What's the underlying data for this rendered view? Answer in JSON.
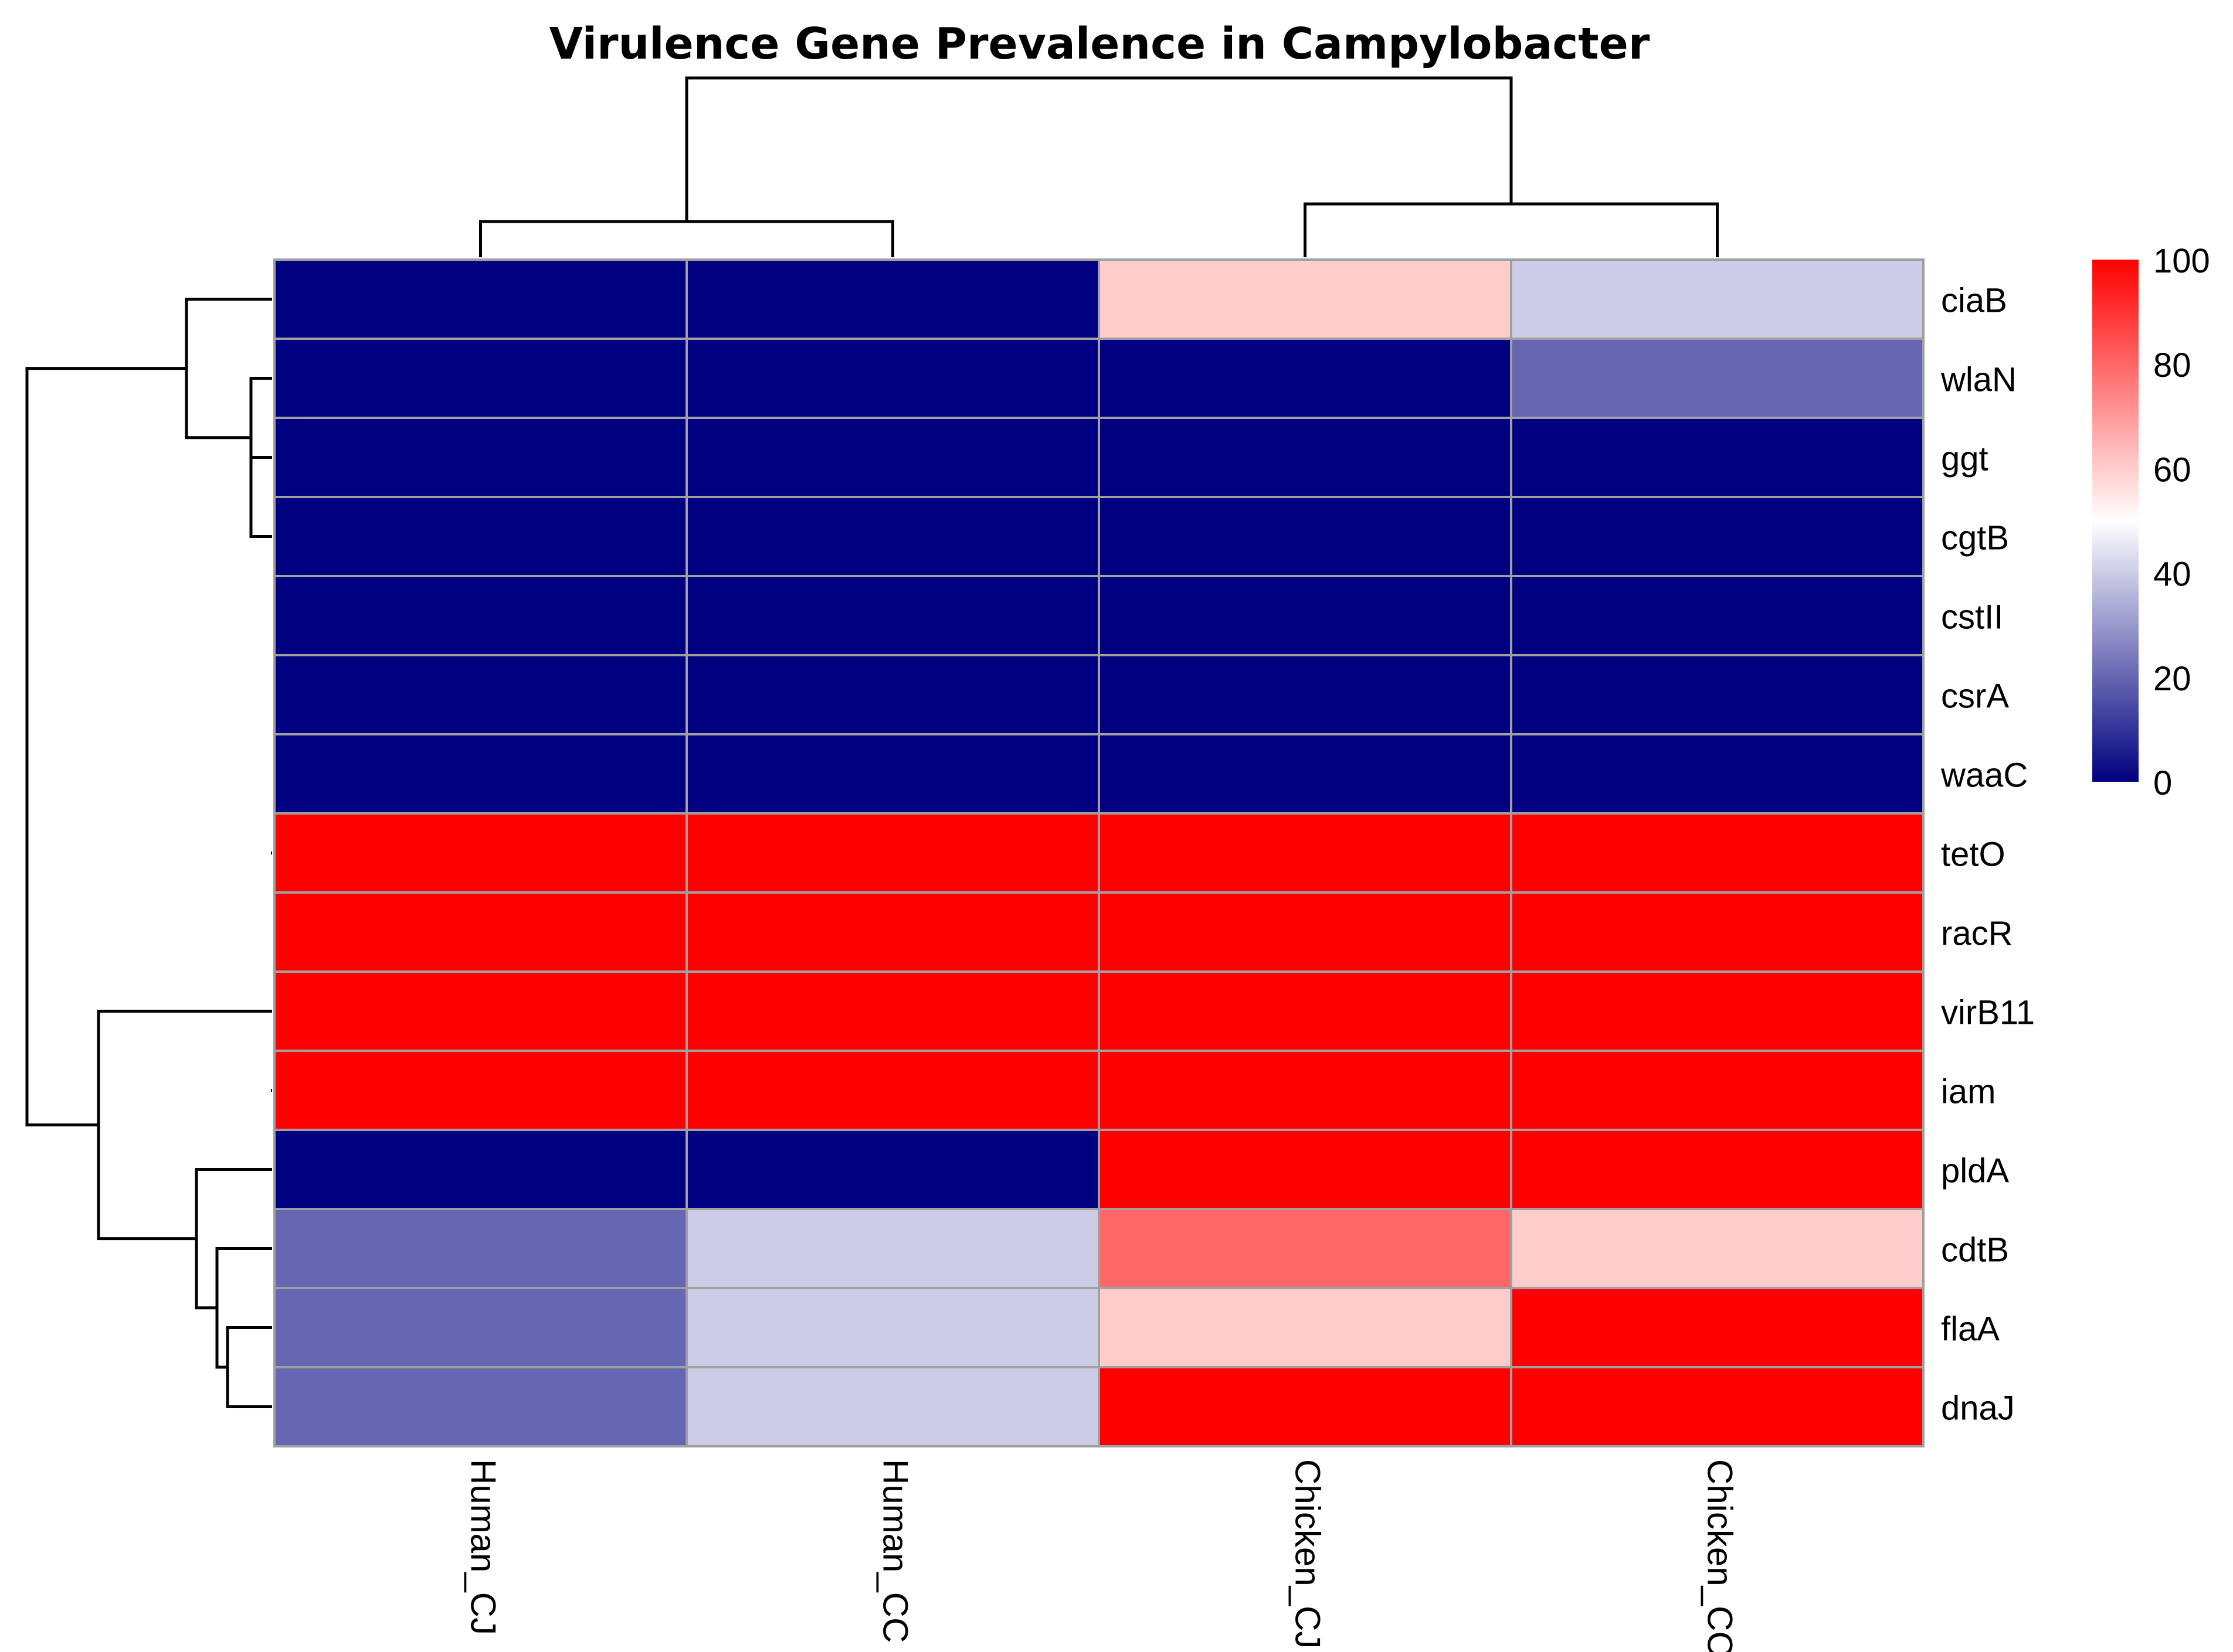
{
  "chart_data": {
    "type": "heatmap",
    "title": "Virulence Gene Prevalence in Campylobacter",
    "columns": [
      "Human_CJ",
      "Human_CC",
      "Chicken_CJ",
      "Chicken_CC"
    ],
    "rows": [
      "ciaB",
      "wlaN",
      "ggt",
      "cgtB",
      "cstII",
      "csrA",
      "waaC",
      "tetO",
      "racR",
      "virB11",
      "iam",
      "pldA",
      "cdtB",
      "flaA",
      "dnaJ"
    ],
    "values": [
      [
        0,
        0,
        60,
        40
      ],
      [
        0,
        0,
        0,
        20
      ],
      [
        0,
        0,
        0,
        0
      ],
      [
        0,
        0,
        0,
        0
      ],
      [
        0,
        0,
        0,
        0
      ],
      [
        0,
        0,
        0,
        0
      ],
      [
        0,
        0,
        0,
        0
      ],
      [
        100,
        100,
        100,
        100
      ],
      [
        100,
        100,
        100,
        100
      ],
      [
        100,
        100,
        100,
        100
      ],
      [
        100,
        100,
        100,
        100
      ],
      [
        0,
        0,
        100,
        100
      ],
      [
        20,
        40,
        80,
        60
      ],
      [
        20,
        40,
        60,
        100
      ],
      [
        20,
        40,
        100,
        100
      ]
    ],
    "color_scale": {
      "min": 0,
      "max": 100,
      "colors": [
        "#000080",
        "#ffffff",
        "#ff0000"
      ],
      "ticks": [
        0,
        20,
        40,
        60,
        80,
        100
      ]
    },
    "column_dendrogram": [
      [
        "Human_CJ",
        "Human_CC"
      ],
      [
        "Chicken_CJ",
        "Chicken_CC"
      ]
    ],
    "row_dendrogram": [
      [
        [
          "ciaB",
          [
            [
              "wlaN"
            ],
            [
              [
                "ggt",
                "cgtB"
              ]
            ]
          ]
        ]
      ],
      [
        [
          "tetO",
          "racR",
          "virB11",
          "iam"
        ],
        [
          "pldA",
          [
            [
              "cdtB"
            ],
            [
              "flaA",
              "dnaJ"
            ]
          ]
        ]
      ]
    ],
    "grid_color": "#a0a0a0",
    "legend_position": "right"
  }
}
